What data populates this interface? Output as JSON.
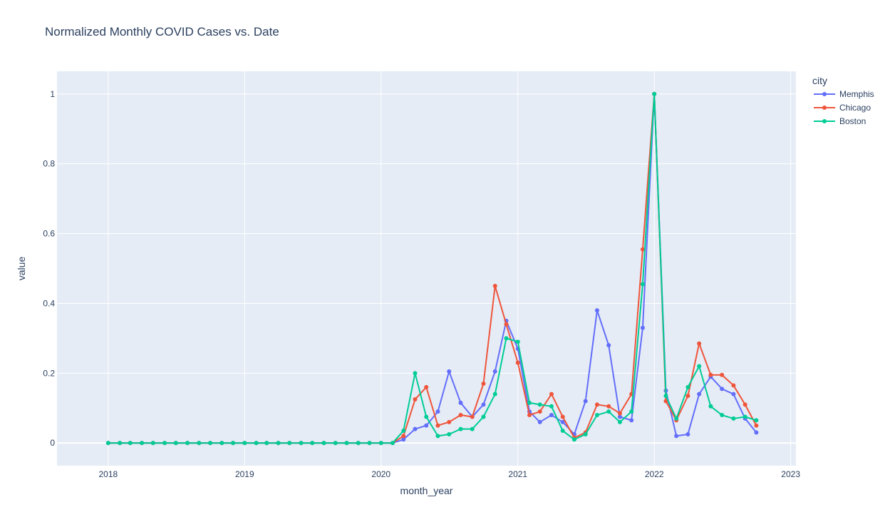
{
  "chart_data": {
    "type": "line",
    "title": "Normalized Monthly COVID Cases vs. Date",
    "xlabel": "month_year",
    "ylabel": "value",
    "x_ticks": [
      "2018",
      "2019",
      "2020",
      "2021",
      "2022",
      "2023"
    ],
    "y_ticks": [
      "0",
      "0.2",
      "0.4",
      "0.6",
      "0.8",
      "1"
    ],
    "xlim": [
      "2017-08-17",
      "2023-01-15"
    ],
    "ylim": [
      -0.065,
      1.065
    ],
    "grid": true,
    "legend_title": "city",
    "legend_position": "top-right",
    "x": [
      "2018-01",
      "2018-02",
      "2018-03",
      "2018-04",
      "2018-05",
      "2018-06",
      "2018-07",
      "2018-08",
      "2018-09",
      "2018-10",
      "2018-11",
      "2018-12",
      "2019-01",
      "2019-02",
      "2019-03",
      "2019-04",
      "2019-05",
      "2019-06",
      "2019-07",
      "2019-08",
      "2019-09",
      "2019-10",
      "2019-11",
      "2019-12",
      "2020-01",
      "2020-02",
      "2020-03",
      "2020-04",
      "2020-05",
      "2020-06",
      "2020-07",
      "2020-08",
      "2020-09",
      "2020-10",
      "2020-11",
      "2020-12",
      "2021-01",
      "2021-02",
      "2021-03",
      "2021-04",
      "2021-05",
      "2021-06",
      "2021-07",
      "2021-08",
      "2021-09",
      "2021-10",
      "2021-11",
      "2021-12",
      "2022-01",
      "2022-02",
      "2022-03",
      "2022-04",
      "2022-05",
      "2022-06",
      "2022-07",
      "2022-08",
      "2022-09",
      "2022-10"
    ],
    "series": [
      {
        "name": "Memphis",
        "color": "#636efa",
        "values": [
          0,
          0,
          0,
          0,
          0,
          0,
          0,
          0,
          0,
          0,
          0,
          0,
          0,
          0,
          0,
          0,
          0,
          0,
          0,
          0,
          0,
          0,
          0,
          0,
          0,
          0,
          0.01,
          0.04,
          0.05,
          0.09,
          0.205,
          0.115,
          0.075,
          0.11,
          0.205,
          0.35,
          0.27,
          0.09,
          0.06,
          0.08,
          0.06,
          0.025,
          0.12,
          0.38,
          0.28,
          0.075,
          0.065,
          0.33,
          1.0,
          0.15,
          0.02,
          0.025,
          0.14,
          0.19,
          0.155,
          0.14,
          0.07,
          0.03
        ]
      },
      {
        "name": "Chicago",
        "color": "#ef553b",
        "values": [
          0,
          0,
          0,
          0,
          0,
          0,
          0,
          0,
          0,
          0,
          0,
          0,
          0,
          0,
          0,
          0,
          0,
          0,
          0,
          0,
          0,
          0,
          0,
          0,
          0,
          0,
          0.02,
          0.125,
          0.16,
          0.05,
          0.06,
          0.08,
          0.075,
          0.17,
          0.45,
          0.34,
          0.23,
          0.08,
          0.09,
          0.14,
          0.075,
          0.015,
          0.03,
          0.11,
          0.105,
          0.085,
          0.14,
          0.555,
          1.0,
          0.12,
          0.065,
          0.135,
          0.285,
          0.195,
          0.195,
          0.165,
          0.11,
          0.05
        ]
      },
      {
        "name": "Boston",
        "color": "#00cc96",
        "values": [
          0,
          0,
          0,
          0,
          0,
          0,
          0,
          0,
          0,
          0,
          0,
          0,
          0,
          0,
          0,
          0,
          0,
          0,
          0,
          0,
          0,
          0,
          0,
          0,
          0,
          0,
          0.035,
          0.2,
          0.075,
          0.02,
          0.025,
          0.04,
          0.04,
          0.075,
          0.14,
          0.3,
          0.29,
          0.115,
          0.11,
          0.105,
          0.035,
          0.01,
          0.025,
          0.08,
          0.09,
          0.06,
          0.09,
          0.455,
          1.0,
          0.135,
          0.07,
          0.16,
          0.22,
          0.105,
          0.08,
          0.07,
          0.075,
          0.065
        ]
      }
    ]
  }
}
